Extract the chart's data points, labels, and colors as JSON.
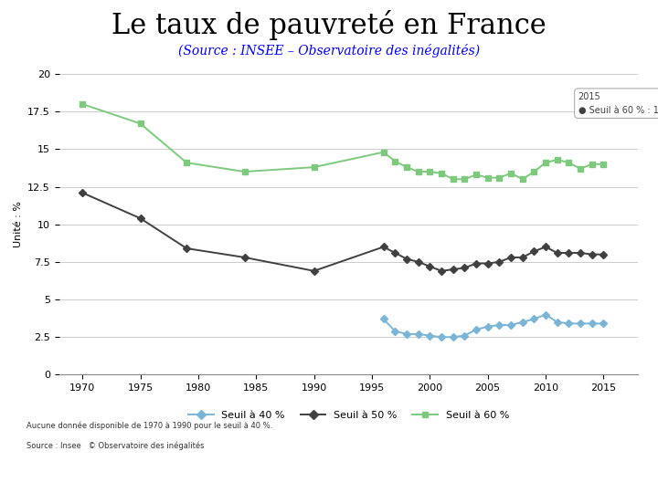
{
  "title": "Le taux de pauvreté en France",
  "subtitle": "(Source : INSEE – Observatoire des inégalités)",
  "ylabel": "Unité : %",
  "xlim": [
    1968,
    2018
  ],
  "ylim": [
    0,
    20
  ],
  "yticks": [
    0,
    2.5,
    5,
    7.5,
    10,
    12.5,
    15,
    17.5,
    20
  ],
  "xticks": [
    1970,
    1975,
    1980,
    1985,
    1990,
    1995,
    2000,
    2005,
    2010,
    2015
  ],
  "note1": "Aucune donnée disponible de 1970 à 1990 pour le seuil à 40 %.",
  "note2": "Source : Insee   © Observatoire des inégalités",
  "legend_items": [
    "Seuil à 40 %",
    "Seuil à 50 %",
    "Seuil à 60 %"
  ],
  "title_bg": "#d8d0e8",
  "title_fontsize": 22,
  "subtitle_fontsize": 10,
  "seuil60_color": "#7dc97d",
  "seuil50_color": "#404040",
  "seuil40_color": "#7ab5d8",
  "seuil60_years": [
    1970,
    1975,
    1979,
    1984,
    1990,
    1996,
    1997,
    1998,
    1999,
    2000,
    2001,
    2002,
    2003,
    2004,
    2005,
    2006,
    2007,
    2008,
    2009,
    2010,
    2011,
    2012,
    2013,
    2014,
    2015
  ],
  "seuil60_values": [
    18.0,
    16.7,
    14.1,
    13.5,
    13.8,
    14.8,
    14.2,
    13.8,
    13.5,
    13.5,
    13.4,
    13.0,
    13.0,
    13.3,
    13.1,
    13.1,
    13.4,
    13.0,
    13.5,
    14.1,
    14.3,
    14.1,
    13.7,
    14.0,
    14.0
  ],
  "seuil50_years": [
    1970,
    1975,
    1979,
    1984,
    1990,
    1996,
    1997,
    1998,
    1999,
    2000,
    2001,
    2002,
    2003,
    2004,
    2005,
    2006,
    2007,
    2008,
    2009,
    2010,
    2011,
    2012,
    2013,
    2014,
    2015
  ],
  "seuil50_values": [
    12.1,
    10.4,
    8.4,
    7.8,
    6.9,
    8.5,
    8.1,
    7.7,
    7.5,
    7.2,
    6.9,
    7.0,
    7.1,
    7.4,
    7.4,
    7.5,
    7.8,
    7.8,
    8.2,
    8.5,
    8.1,
    8.1,
    8.1,
    8.0,
    8.0
  ],
  "seuil40_years": [
    1996,
    1997,
    1998,
    1999,
    2000,
    2001,
    2002,
    2003,
    2004,
    2005,
    2006,
    2007,
    2008,
    2009,
    2010,
    2011,
    2012,
    2013,
    2014,
    2015
  ],
  "seuil40_values": [
    3.7,
    2.9,
    2.7,
    2.7,
    2.6,
    2.5,
    2.5,
    2.6,
    3.0,
    3.2,
    3.3,
    3.3,
    3.5,
    3.7,
    4.0,
    3.5,
    3.4,
    3.4,
    3.4,
    3.4
  ]
}
